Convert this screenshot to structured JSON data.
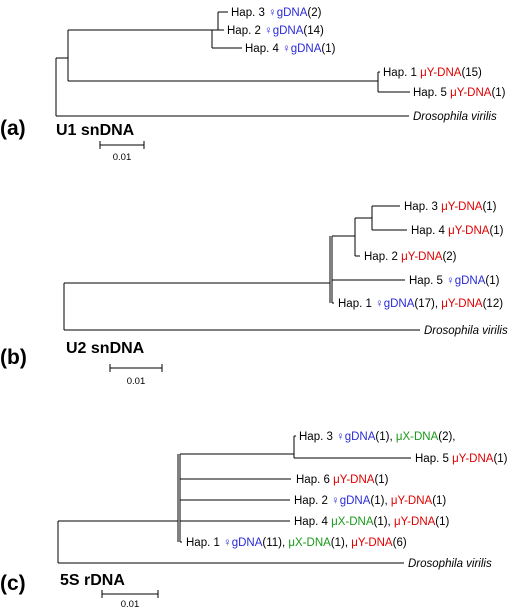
{
  "colors": {
    "female_gDNA": "#2a2ad8",
    "male_Y_DNA": "#e00000",
    "male_X_DNA": "#1a9a1a",
    "text": "#000000"
  },
  "scale_bar_label": "0.01",
  "outgroup": "Drosophila virilis",
  "panels": [
    {
      "letter": "(a)",
      "title": "U1 snDNA",
      "haplotypes": [
        {
          "prefix": "Hap. 3 ",
          "parts": [
            {
              "text": "♀gDNA",
              "kind": "female_gDNA"
            },
            {
              "text": "(2)",
              "kind": "text"
            }
          ]
        },
        {
          "prefix": "Hap. 2 ",
          "parts": [
            {
              "text": "♀gDNA",
              "kind": "female_gDNA"
            },
            {
              "text": "(14)",
              "kind": "text"
            }
          ]
        },
        {
          "prefix": "Hap. 4 ",
          "parts": [
            {
              "text": "♀gDNA",
              "kind": "female_gDNA"
            },
            {
              "text": "(1)",
              "kind": "text"
            }
          ]
        },
        {
          "prefix": "Hap. 1 ",
          "parts": [
            {
              "text": "μY-DNA",
              "kind": "male_Y_DNA"
            },
            {
              "text": "(15)",
              "kind": "text"
            }
          ]
        },
        {
          "prefix": "Hap. 5 ",
          "parts": [
            {
              "text": "μY-DNA",
              "kind": "male_Y_DNA"
            },
            {
              "text": "(1)",
              "kind": "text"
            }
          ]
        }
      ]
    },
    {
      "letter": "(b)",
      "title": "U2 snDNA",
      "haplotypes": [
        {
          "prefix": "Hap. 3 ",
          "parts": [
            {
              "text": "μY-DNA",
              "kind": "male_Y_DNA"
            },
            {
              "text": "(1)",
              "kind": "text"
            }
          ]
        },
        {
          "prefix": "Hap. 4 ",
          "parts": [
            {
              "text": "μY-DNA",
              "kind": "male_Y_DNA"
            },
            {
              "text": "(1)",
              "kind": "text"
            }
          ]
        },
        {
          "prefix": "Hap. 2 ",
          "parts": [
            {
              "text": "μY-DNA",
              "kind": "male_Y_DNA"
            },
            {
              "text": "(2)",
              "kind": "text"
            }
          ]
        },
        {
          "prefix": "Hap. 5 ",
          "parts": [
            {
              "text": "♀gDNA",
              "kind": "female_gDNA"
            },
            {
              "text": "(1)",
              "kind": "text"
            }
          ]
        },
        {
          "prefix": "Hap. 1 ",
          "parts": [
            {
              "text": "♀gDNA",
              "kind": "female_gDNA"
            },
            {
              "text": "(17), ",
              "kind": "text"
            },
            {
              "text": "μY-DNA",
              "kind": "male_Y_DNA"
            },
            {
              "text": "(12)",
              "kind": "text"
            }
          ]
        }
      ]
    },
    {
      "letter": "(c)",
      "title": "5S rDNA",
      "haplotypes": [
        {
          "prefix": "Hap. 3 ",
          "parts": [
            {
              "text": "♀gDNA",
              "kind": "female_gDNA"
            },
            {
              "text": "(1), ",
              "kind": "text"
            },
            {
              "text": "μX-DNA",
              "kind": "male_X_DNA"
            },
            {
              "text": "(2),",
              "kind": "text"
            }
          ]
        },
        {
          "prefix": "Hap. 5 ",
          "parts": [
            {
              "text": "μY-DNA",
              "kind": "male_Y_DNA"
            },
            {
              "text": "(1)",
              "kind": "text"
            }
          ]
        },
        {
          "prefix": "Hap. 6 ",
          "parts": [
            {
              "text": "μY-DNA",
              "kind": "male_Y_DNA"
            },
            {
              "text": "(1)",
              "kind": "text"
            }
          ]
        },
        {
          "prefix": "Hap. 2 ",
          "parts": [
            {
              "text": "♀gDNA",
              "kind": "female_gDNA"
            },
            {
              "text": "(1), ",
              "kind": "text"
            },
            {
              "text": "μY-DNA",
              "kind": "male_Y_DNA"
            },
            {
              "text": "(1)",
              "kind": "text"
            }
          ]
        },
        {
          "prefix": "Hap. 4 ",
          "parts": [
            {
              "text": "μX-DNA",
              "kind": "male_X_DNA"
            },
            {
              "text": "(1), ",
              "kind": "text"
            },
            {
              "text": "μY-DNA",
              "kind": "male_Y_DNA"
            },
            {
              "text": "(1)",
              "kind": "text"
            }
          ]
        },
        {
          "prefix": "Hap. 1 ",
          "parts": [
            {
              "text": "♀gDNA",
              "kind": "female_gDNA"
            },
            {
              "text": "(11), ",
              "kind": "text"
            },
            {
              "text": "μX-DNA",
              "kind": "male_X_DNA"
            },
            {
              "text": "(1), ",
              "kind": "text"
            },
            {
              "text": "μY-DNA",
              "kind": "male_Y_DNA"
            },
            {
              "text": "(6)",
              "kind": "text"
            }
          ]
        }
      ]
    }
  ]
}
